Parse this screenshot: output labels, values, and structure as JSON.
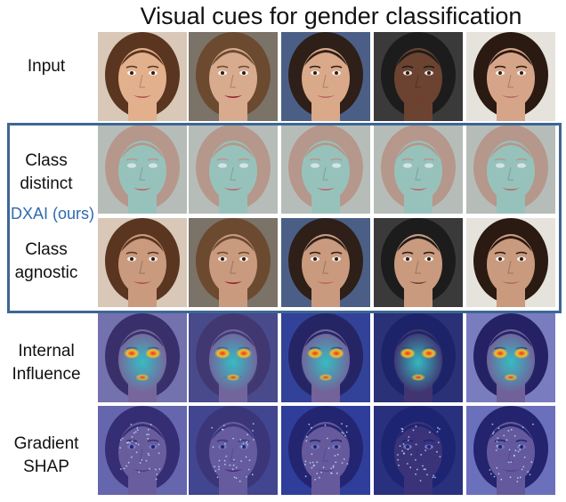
{
  "title": "Visual cues for gender classification",
  "rows": [
    {
      "label_lines": [
        "Input"
      ],
      "kind": "input"
    },
    {
      "label_lines": [
        "Class",
        "distinct"
      ],
      "kind": "distinct"
    },
    {
      "label_lines": [
        "Class",
        "agnostic"
      ],
      "kind": "agnostic"
    },
    {
      "label_lines": [
        "Internal",
        "Influence"
      ],
      "kind": "influence"
    },
    {
      "label_lines": [
        "Gradient",
        "SHAP"
      ],
      "kind": "shap"
    }
  ],
  "method_tag": "DXAI (ours)",
  "faces": [
    {
      "bg": "#d9c8b7",
      "hair": "#5a3520",
      "skin": "#e2b08c",
      "lip": "#b05050"
    },
    {
      "bg": "#7b7268",
      "hair": "#6b4a30",
      "skin": "#d8aa8e",
      "lip": "#8c1e2a"
    },
    {
      "bg": "#4b5f86",
      "hair": "#2e1f18",
      "skin": "#d9a98a",
      "lip": "#c06464"
    },
    {
      "bg": "#3a3a3a",
      "hair": "#1c1c1c",
      "skin": "#6b4330",
      "lip": "#7a3a30"
    },
    {
      "bg": "#e6e3dc",
      "hair": "#2a1a12",
      "skin": "#d6a589",
      "lip": "#b06a60"
    }
  ],
  "colors": {
    "box_border": "#3d6795",
    "method_tag": "#2e6ab0",
    "heat_bg": "#1f2aa8",
    "heat_mid": "#34c1c4",
    "heat_hot": "#e8321e"
  }
}
